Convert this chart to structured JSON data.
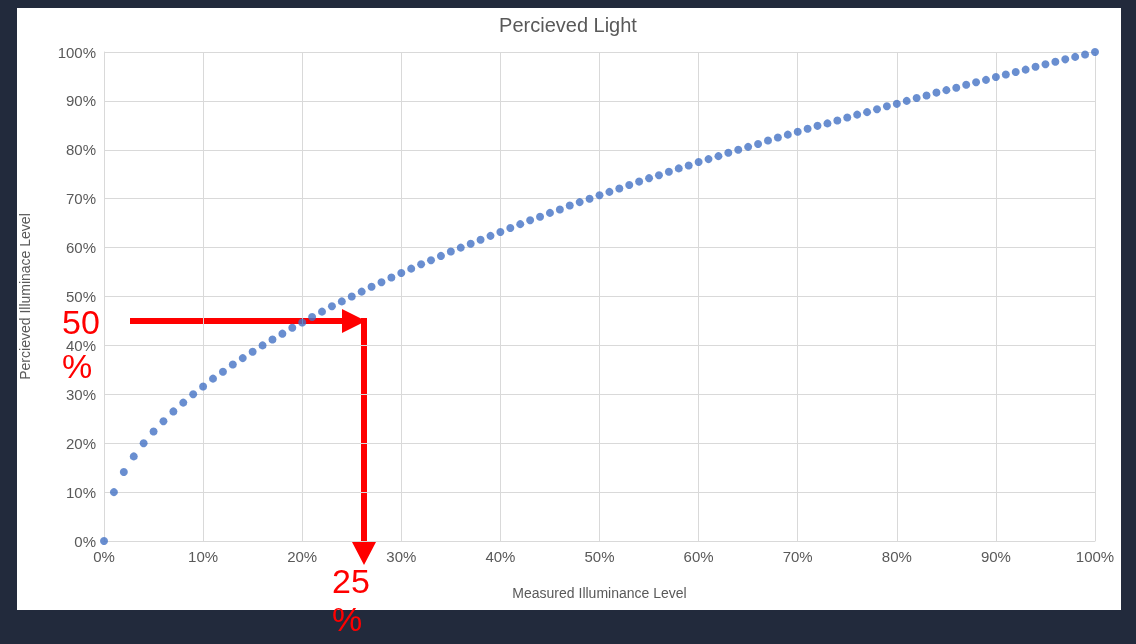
{
  "chart_data": {
    "type": "scatter",
    "title": "Percieved Light",
    "xlabel": "Measured Illuminance Level",
    "ylabel": "Percieved Illuminace Level",
    "x": [
      0,
      1,
      2,
      3,
      4,
      5,
      6,
      7,
      8,
      9,
      10,
      11,
      12,
      13,
      14,
      15,
      16,
      17,
      18,
      19,
      20,
      21,
      22,
      23,
      24,
      25,
      26,
      27,
      28,
      29,
      30,
      31,
      32,
      33,
      34,
      35,
      36,
      37,
      38,
      39,
      40,
      41,
      42,
      43,
      44,
      45,
      46,
      47,
      48,
      49,
      50,
      51,
      52,
      53,
      54,
      55,
      56,
      57,
      58,
      59,
      60,
      61,
      62,
      63,
      64,
      65,
      66,
      67,
      68,
      69,
      70,
      71,
      72,
      73,
      74,
      75,
      76,
      77,
      78,
      79,
      80,
      81,
      82,
      83,
      84,
      85,
      86,
      87,
      88,
      89,
      90,
      91,
      92,
      93,
      94,
      95,
      96,
      97,
      98,
      99,
      100
    ],
    "series": [
      {
        "color": "#4472c4",
        "values": [
          0,
          10,
          14.1,
          17.3,
          20,
          22.4,
          24.5,
          26.5,
          28.3,
          30,
          31.6,
          33.2,
          34.6,
          36.1,
          37.4,
          38.7,
          40,
          41.2,
          42.4,
          43.6,
          44.7,
          45.8,
          46.9,
          48,
          49,
          50,
          51,
          52,
          52.9,
          53.9,
          54.8,
          55.7,
          56.6,
          57.4,
          58.3,
          59.2,
          60,
          60.8,
          61.6,
          62.4,
          63.2,
          64,
          64.8,
          65.6,
          66.3,
          67.1,
          67.8,
          68.6,
          69.3,
          70,
          70.7,
          71.4,
          72.1,
          72.8,
          73.5,
          74.2,
          74.8,
          75.5,
          76.2,
          76.8,
          77.5,
          78.1,
          78.7,
          79.4,
          80,
          80.6,
          81.2,
          81.9,
          82.5,
          83.1,
          83.7,
          84.3,
          84.9,
          85.4,
          86,
          86.6,
          87.2,
          87.7,
          88.3,
          88.9,
          89.4,
          90,
          90.6,
          91.1,
          91.7,
          92.2,
          92.7,
          93.3,
          93.8,
          94.3,
          94.9,
          95.4,
          95.9,
          96.4,
          97,
          97.5,
          98,
          98.5,
          99,
          99.5,
          100
        ]
      }
    ],
    "xlim": [
      0,
      100
    ],
    "ylim": [
      0,
      100
    ],
    "xticks": [
      {
        "value": 0,
        "label": "0%"
      },
      {
        "value": 10,
        "label": "10%"
      },
      {
        "value": 20,
        "label": "20%"
      },
      {
        "value": 30,
        "label": "30%"
      },
      {
        "value": 40,
        "label": "40%"
      },
      {
        "value": 50,
        "label": "50%"
      },
      {
        "value": 60,
        "label": "60%"
      },
      {
        "value": 70,
        "label": "70%"
      },
      {
        "value": 80,
        "label": "80%"
      },
      {
        "value": 90,
        "label": "90%"
      },
      {
        "value": 100,
        "label": "100%"
      }
    ],
    "yticks": [
      {
        "value": 0,
        "label": "0%"
      },
      {
        "value": 10,
        "label": "10%"
      },
      {
        "value": 20,
        "label": "20%"
      },
      {
        "value": 30,
        "label": "30%"
      },
      {
        "value": 40,
        "label": "40%"
      },
      {
        "value": 50,
        "label": "50%"
      },
      {
        "value": 60,
        "label": "60%"
      },
      {
        "value": 70,
        "label": "70%"
      },
      {
        "value": 80,
        "label": "80%"
      },
      {
        "value": 90,
        "label": "90%"
      },
      {
        "value": 100,
        "label": "100%"
      }
    ],
    "grid": true,
    "marker": "circle",
    "annotations": [
      "50 %",
      "25 %"
    ]
  }
}
